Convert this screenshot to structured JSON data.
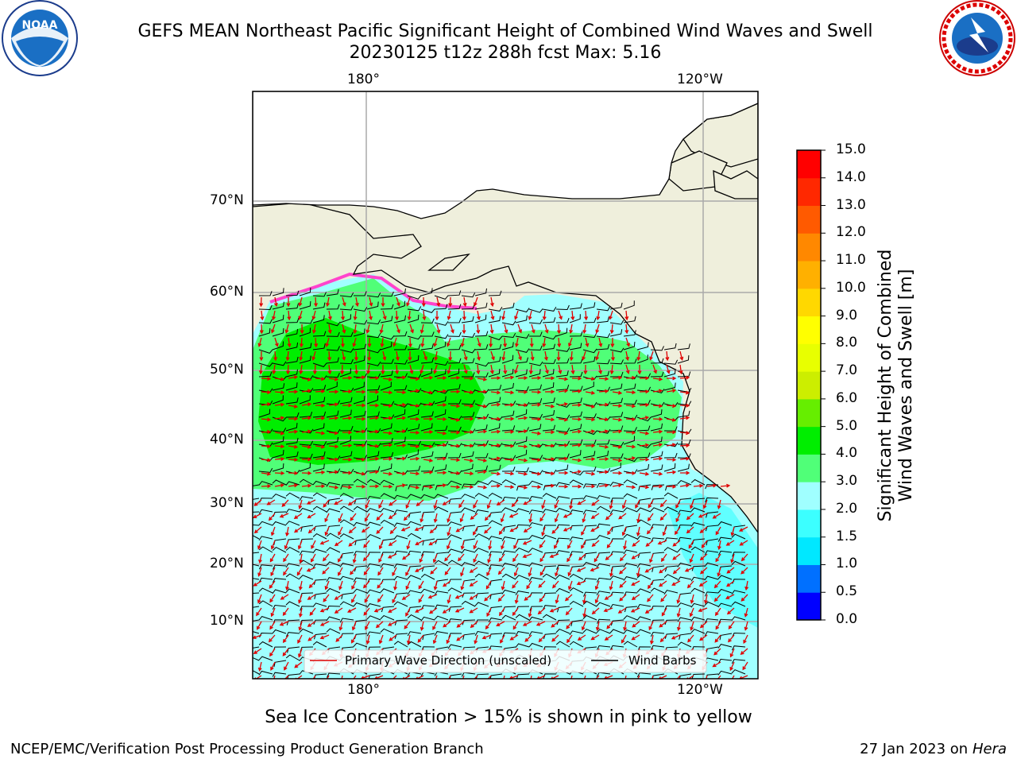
{
  "title": {
    "line1": "GEFS MEAN Northeast Pacific Significant Height of Combined Wind Waves and Swell",
    "line2": "20230125 t12z 288h fcst   Max: 5.16"
  },
  "logos": {
    "left": "NOAA",
    "right": "NATIONAL WEATHER SERVICE"
  },
  "axes": {
    "top_labels": [
      "180°",
      "120°W"
    ],
    "bottom_labels": [
      "180°",
      "120°W"
    ],
    "left_labels": [
      "70°N",
      "60°N",
      "50°N",
      "40°N",
      "30°N",
      "20°N",
      "10°N"
    ]
  },
  "legend": {
    "wave_dir": "Primary Wave Direction (unscaled)",
    "wind_barbs": "Wind Barbs"
  },
  "colorbar": {
    "title_line1": "Significant Height of Combined",
    "title_line2": "Wind Waves and Swell [m]",
    "ticks": [
      "0.0",
      "0.5",
      "1.0",
      "1.5",
      "2.0",
      "3.0",
      "4.0",
      "5.0",
      "6.0",
      "7.0",
      "8.0",
      "9.0",
      "10.0",
      "11.0",
      "12.0",
      "13.0",
      "14.0",
      "15.0"
    ],
    "colors": [
      "#0000ff",
      "#0070ff",
      "#00e8ff",
      "#3cffff",
      "#a0ffff",
      "#50ff78",
      "#00ee00",
      "#66ee00",
      "#ccee00",
      "#e8ff00",
      "#ffff00",
      "#ffd800",
      "#ffb000",
      "#ff8800",
      "#ff5a00",
      "#ff2800",
      "#ff0000"
    ]
  },
  "colors": {
    "land": "#efefdc",
    "ocean_low": "#a0ffff",
    "ocean_mid": "#50ff78",
    "ocean_high": "#00ee00",
    "arrow": "#e00000"
  },
  "caption": "Sea Ice Concentration > 15% is shown in pink to yellow",
  "footer": {
    "left": "NCEP/EMC/Verification Post Processing Product Generation Branch",
    "date": "27 Jan 2023 on",
    "machine": "Hera"
  }
}
